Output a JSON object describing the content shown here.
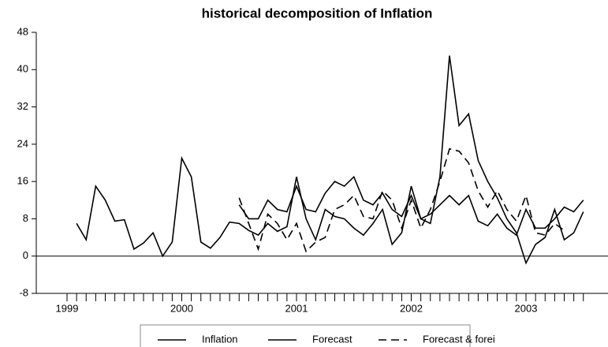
{
  "chart_data": {
    "type": "line",
    "title": "historical decomposition of Inflation",
    "categories": [
      "1999",
      null,
      null,
      null,
      null,
      null,
      null,
      null,
      null,
      null,
      null,
      null,
      "2000",
      null,
      null,
      null,
      null,
      null,
      null,
      null,
      null,
      null,
      null,
      null,
      "2001",
      null,
      null,
      null,
      null,
      null,
      null,
      null,
      null,
      null,
      null,
      null,
      "2002",
      null,
      null,
      null,
      null,
      null,
      null,
      null,
      null,
      null,
      null,
      null,
      "2003",
      null,
      null,
      null,
      null,
      null,
      null
    ],
    "series": [
      {
        "name": "Inflation",
        "color": "#000000",
        "dashed": false,
        "values": [
          null,
          7,
          3.5,
          15,
          12,
          7.5,
          7.8,
          1.5,
          2.8,
          5,
          0,
          3,
          21,
          17,
          3,
          1.7,
          4,
          7.3,
          7,
          5.5,
          4.5,
          7,
          5.3,
          6.3,
          17,
          8,
          3.5,
          10,
          8.5,
          8,
          6,
          4.5,
          7,
          10,
          2.5,
          5,
          15,
          8,
          7,
          17,
          43,
          28,
          30.5,
          20.5,
          16,
          12.5,
          8,
          5,
          -1.5,
          2.5,
          4,
          10,
          3.5,
          5,
          9.5
        ]
      },
      {
        "name": "Forecast",
        "color": "#000000",
        "dashed": false,
        "values": [
          null,
          null,
          null,
          null,
          null,
          null,
          null,
          null,
          null,
          null,
          null,
          null,
          null,
          null,
          null,
          null,
          null,
          null,
          11,
          8,
          8,
          12,
          10,
          9.5,
          15,
          10,
          9.5,
          13.5,
          16,
          15,
          17,
          12,
          11,
          13.5,
          10,
          8.5,
          13,
          8,
          9,
          11,
          13,
          11,
          13,
          7.5,
          6.5,
          9,
          6,
          4.5,
          10,
          6,
          6,
          8,
          10.5,
          9.5,
          12
        ]
      },
      {
        "name": "Forecast & forei",
        "color": "#000000",
        "dashed": true,
        "values": [
          null,
          null,
          null,
          null,
          null,
          null,
          null,
          null,
          null,
          null,
          null,
          null,
          null,
          null,
          null,
          null,
          null,
          null,
          12.5,
          7,
          1.5,
          9,
          7,
          3.5,
          7,
          1,
          3,
          4,
          10,
          11,
          13,
          8.5,
          8,
          14,
          12,
          6,
          12,
          6,
          10,
          16,
          23,
          22.5,
          20,
          14,
          10.5,
          14,
          10,
          7.5,
          13,
          5,
          4.5,
          7,
          5.5,
          null,
          null
        ]
      }
    ],
    "ylim": [
      -8,
      48
    ],
    "yticks": [
      -8,
      0,
      8,
      16,
      24,
      32,
      40,
      48
    ]
  }
}
